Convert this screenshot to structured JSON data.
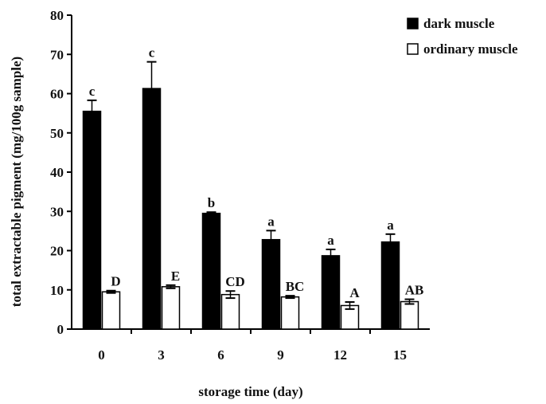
{
  "chart_data": {
    "type": "bar",
    "title": "",
    "xlabel": "storage time (day)",
    "ylabel": "total extractable pigment (mg/100g sample)",
    "ylim": [
      0,
      80
    ],
    "yticks": [
      0,
      10,
      20,
      30,
      40,
      50,
      60,
      70,
      80
    ],
    "categories": [
      "0",
      "3",
      "6",
      "9",
      "12",
      "15"
    ],
    "grid": false,
    "legend_position": "top-right",
    "series": [
      {
        "name": "dark muscle",
        "color": "#000000",
        "values": [
          55.5,
          61.3,
          29.5,
          22.8,
          18.7,
          22.2
        ],
        "errors": [
          2.8,
          6.8,
          0.3,
          2.3,
          1.6,
          2.0
        ],
        "labels": [
          "c",
          "c",
          "b",
          "a",
          "a",
          "a"
        ]
      },
      {
        "name": "ordinary muscle",
        "color": "#ffffff",
        "values": [
          9.5,
          10.8,
          8.8,
          8.2,
          6.0,
          7.0
        ],
        "errors": [
          0.3,
          0.4,
          0.9,
          0.3,
          0.9,
          0.6
        ],
        "labels": [
          "D",
          "E",
          "CD",
          "BC",
          "A",
          "AB"
        ]
      }
    ]
  }
}
